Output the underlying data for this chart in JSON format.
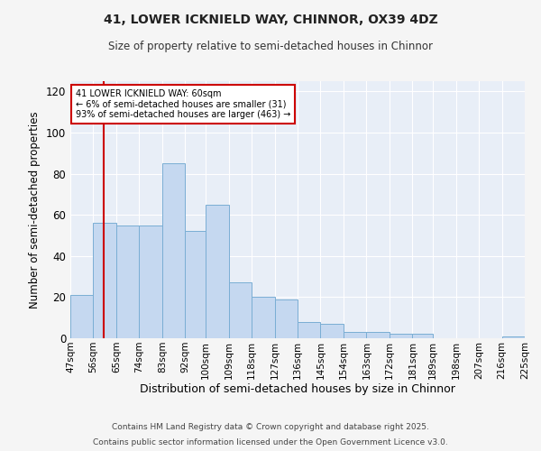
{
  "title1": "41, LOWER ICKNIELD WAY, CHINNOR, OX39 4DZ",
  "title2": "Size of property relative to semi-detached houses in Chinnor",
  "xlabel": "Distribution of semi-detached houses by size in Chinnor",
  "ylabel": "Number of semi-detached properties",
  "bin_edges": [
    47,
    56,
    65,
    74,
    83,
    92,
    100,
    109,
    118,
    127,
    136,
    145,
    154,
    163,
    172,
    181,
    189,
    198,
    207,
    216,
    225
  ],
  "bar_heights": [
    21,
    56,
    55,
    55,
    85,
    52,
    65,
    27,
    20,
    19,
    8,
    7,
    3,
    3,
    2,
    2,
    0,
    0,
    0,
    1
  ],
  "bar_color": "#c5d8f0",
  "bar_edge_color": "#7aaed4",
  "property_size": 60,
  "property_label": "41 LOWER ICKNIELD WAY: 60sqm",
  "annotation_line1": "← 6% of semi-detached houses are smaller (31)",
  "annotation_line2": "93% of semi-detached houses are larger (463) →",
  "vline_color": "#cc0000",
  "annotation_box_edge": "#cc0000",
  "ylim": [
    0,
    125
  ],
  "yticks": [
    0,
    20,
    40,
    60,
    80,
    100,
    120
  ],
  "tick_labels": [
    "47sqm",
    "56sqm",
    "65sqm",
    "74sqm",
    "83sqm",
    "92sqm",
    "100sqm",
    "109sqm",
    "118sqm",
    "127sqm",
    "136sqm",
    "145sqm",
    "154sqm",
    "163sqm",
    "172sqm",
    "181sqm",
    "189sqm",
    "198sqm",
    "207sqm",
    "216sqm",
    "225sqm"
  ],
  "footer1": "Contains HM Land Registry data © Crown copyright and database right 2025.",
  "footer2": "Contains public sector information licensed under the Open Government Licence v3.0.",
  "bg_color": "#e8eef7",
  "fig_bg": "#f5f5f5"
}
